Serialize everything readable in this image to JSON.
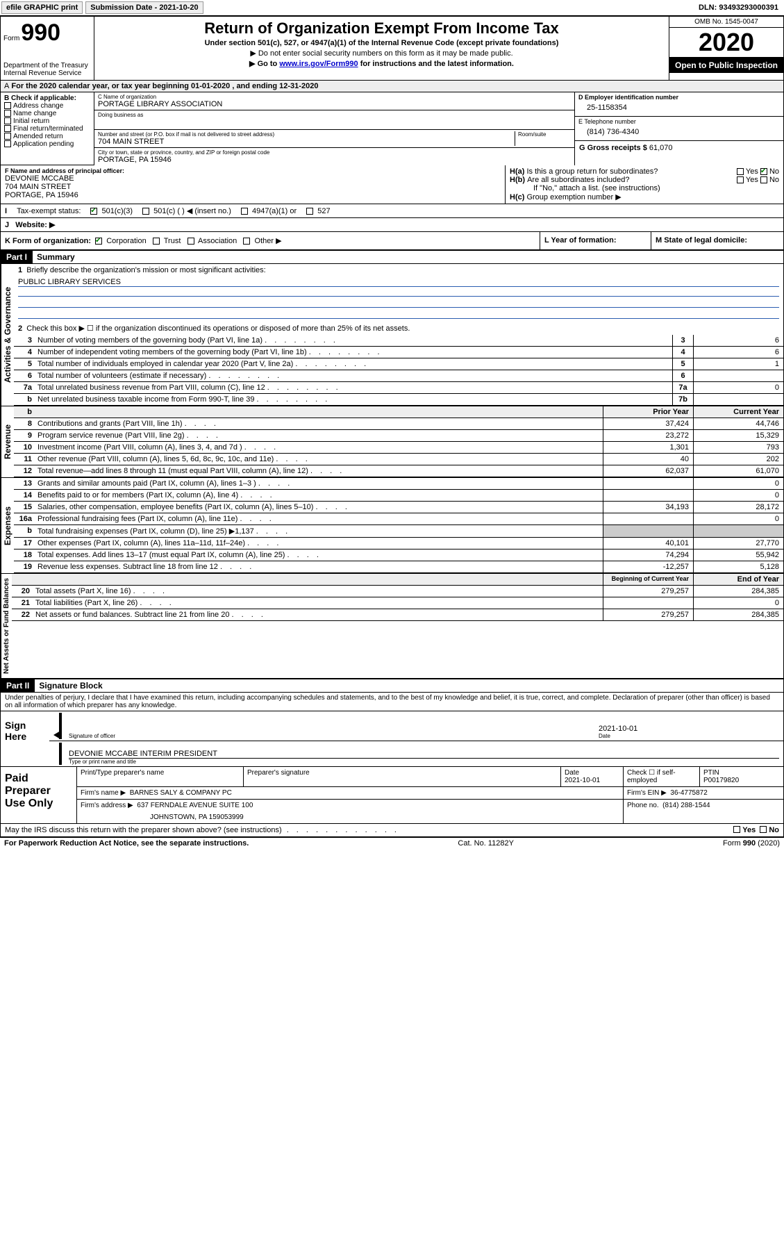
{
  "topbar": {
    "efile": "efile GRAPHIC print",
    "submission_label": "Submission Date - 2021-10-20",
    "dln": "DLN: 93493293000391"
  },
  "header": {
    "form_label": "Form",
    "form_number": "990",
    "dept": "Department of the Treasury",
    "irs": "Internal Revenue Service",
    "title": "Return of Organization Exempt From Income Tax",
    "subtitle": "Under section 501(c), 527, or 4947(a)(1) of the Internal Revenue Code (except private foundations)",
    "line1": "▶ Do not enter social security numbers on this form as it may be made public.",
    "line2_pre": "▶ Go to ",
    "line2_link": "www.irs.gov/Form990",
    "line2_post": " for instructions and the latest information.",
    "omb": "OMB No. 1545-0047",
    "year": "2020",
    "open": "Open to Public Inspection"
  },
  "period": {
    "text": "For the 2020 calendar year, or tax year beginning 01-01-2020    , and ending 12-31-2020"
  },
  "boxB": {
    "heading": "B Check if applicable:",
    "addr": "Address change",
    "name": "Name change",
    "initial": "Initial return",
    "final": "Final return/terminated",
    "amended": "Amended return",
    "app": "Application pending"
  },
  "boxC": {
    "name_label": "C Name of organization",
    "name": "PORTAGE LIBRARY ASSOCIATION",
    "dba_label": "Doing business as",
    "street_label": "Number and street (or P.O. box if mail is not delivered to street address)",
    "room_label": "Room/suite",
    "street": "704 MAIN STREET",
    "city_label": "City or town, state or province, country, and ZIP or foreign postal code",
    "city": "PORTAGE, PA  15946"
  },
  "boxD": {
    "label": "D Employer identification number",
    "value": "25-1158354"
  },
  "boxE": {
    "label": "E Telephone number",
    "value": "(814) 736-4340"
  },
  "boxG": {
    "label": "G Gross receipts $",
    "value": "61,070"
  },
  "boxF": {
    "label": "F  Name and address of principal officer:",
    "name": "DEVONIE MCCABE",
    "street": "704 MAIN STREET",
    "city": "PORTAGE, PA  15946"
  },
  "boxH": {
    "a": "Is this a group return for subordinates?",
    "a_yes": "Yes",
    "a_no": "No",
    "b": "Are all subordinates included?",
    "b_yes": "Yes",
    "b_no": "No",
    "b_note": "If \"No,\" attach a list. (see instructions)",
    "c": "Group exemption number ▶"
  },
  "taxExempt": {
    "label": "Tax-exempt status:",
    "c3": "501(c)(3)",
    "c": "501(c) (   ) ◀ (insert no.)",
    "a1": "4947(a)(1) or",
    "527": "527"
  },
  "website": {
    "label": "Website: ▶"
  },
  "korg": {
    "label": "K Form of organization:",
    "corp": "Corporation",
    "trust": "Trust",
    "assoc": "Association",
    "other": "Other ▶",
    "l": "L Year of formation:",
    "m": "M State of legal domicile:"
  },
  "partI": {
    "tab": "Part I",
    "title": "Summary",
    "q1": "Briefly describe the organization's mission or most significant activities:",
    "mission": "PUBLIC LIBRARY SERVICES",
    "q2": "Check this box ▶ ☐  if the organization discontinued its operations or disposed of more than 25% of its net assets.",
    "lines_gov": [
      {
        "n": "3",
        "d": "Number of voting members of the governing body (Part VI, line 1a)",
        "box": "3",
        "v": "6"
      },
      {
        "n": "4",
        "d": "Number of independent voting members of the governing body (Part VI, line 1b)",
        "box": "4",
        "v": "6"
      },
      {
        "n": "5",
        "d": "Total number of individuals employed in calendar year 2020 (Part V, line 2a)",
        "box": "5",
        "v": "1"
      },
      {
        "n": "6",
        "d": "Total number of volunteers (estimate if necessary)",
        "box": "6",
        "v": ""
      },
      {
        "n": "7a",
        "d": "Total unrelated business revenue from Part VIII, column (C), line 12",
        "box": "7a",
        "v": "0"
      },
      {
        "n": "b",
        "d": "Net unrelated business taxable income from Form 990-T, line 39",
        "box": "7b",
        "v": ""
      }
    ],
    "col_prior": "Prior Year",
    "col_current": "Current Year",
    "lines_rev": [
      {
        "n": "8",
        "d": "Contributions and grants (Part VIII, line 1h)",
        "p": "37,424",
        "c": "44,746"
      },
      {
        "n": "9",
        "d": "Program service revenue (Part VIII, line 2g)",
        "p": "23,272",
        "c": "15,329"
      },
      {
        "n": "10",
        "d": "Investment income (Part VIII, column (A), lines 3, 4, and 7d )",
        "p": "1,301",
        "c": "793"
      },
      {
        "n": "11",
        "d": "Other revenue (Part VIII, column (A), lines 5, 6d, 8c, 9c, 10c, and 11e)",
        "p": "40",
        "c": "202"
      },
      {
        "n": "12",
        "d": "Total revenue—add lines 8 through 11 (must equal Part VIII, column (A), line 12)",
        "p": "62,037",
        "c": "61,070"
      }
    ],
    "lines_exp": [
      {
        "n": "13",
        "d": "Grants and similar amounts paid (Part IX, column (A), lines 1–3 )",
        "p": "",
        "c": "0"
      },
      {
        "n": "14",
        "d": "Benefits paid to or for members (Part IX, column (A), line 4)",
        "p": "",
        "c": "0"
      },
      {
        "n": "15",
        "d": "Salaries, other compensation, employee benefits (Part IX, column (A), lines 5–10)",
        "p": "34,193",
        "c": "28,172"
      },
      {
        "n": "16a",
        "d": "Professional fundraising fees (Part IX, column (A), line 11e)",
        "p": "",
        "c": "0"
      },
      {
        "n": "b",
        "d": "Total fundraising expenses (Part IX, column (D), line 25) ▶1,137",
        "p": "GRAY",
        "c": "GRAY"
      },
      {
        "n": "17",
        "d": "Other expenses (Part IX, column (A), lines 11a–11d, 11f–24e)",
        "p": "40,101",
        "c": "27,770"
      },
      {
        "n": "18",
        "d": "Total expenses. Add lines 13–17 (must equal Part IX, column (A), line 25)",
        "p": "74,294",
        "c": "55,942"
      },
      {
        "n": "19",
        "d": "Revenue less expenses. Subtract line 18 from line 12",
        "p": "-12,257",
        "c": "5,128"
      }
    ],
    "col_begin": "Beginning of Current Year",
    "col_end": "End of Year",
    "lines_net": [
      {
        "n": "20",
        "d": "Total assets (Part X, line 16)",
        "p": "279,257",
        "c": "284,385"
      },
      {
        "n": "21",
        "d": "Total liabilities (Part X, line 26)",
        "p": "",
        "c": "0"
      },
      {
        "n": "22",
        "d": "Net assets or fund balances. Subtract line 21 from line 20",
        "p": "279,257",
        "c": "284,385"
      }
    ],
    "vlabels": {
      "gov": "Activities & Governance",
      "rev": "Revenue",
      "exp": "Expenses",
      "net": "Net Assets or Fund Balances"
    }
  },
  "partII": {
    "tab": "Part II",
    "title": "Signature Block",
    "declare": "Under penalties of perjury, I declare that I have examined this return, including accompanying schedules and statements, and to the best of my knowledge and belief, it is true, correct, and complete. Declaration of preparer (other than officer) is based on all information of which preparer has any knowledge."
  },
  "sign": {
    "here": "Sign Here",
    "sig_label": "Signature of officer",
    "date_label": "Date",
    "date": "2021-10-01",
    "name": "DEVONIE MCCABE  INTERIM PRESIDENT",
    "name_label": "Type or print name and title"
  },
  "preparer": {
    "left": "Paid Preparer Use Only",
    "pt_name_label": "Print/Type preparer's name",
    "sig_label": "Preparer's signature",
    "date_label": "Date",
    "date": "2021-10-01",
    "self_label": "Check ☐ if self-employed",
    "ptin_label": "PTIN",
    "ptin": "P00179820",
    "firm_name_label": "Firm's name    ▶",
    "firm_name": "BARNES SALY & COMPANY PC",
    "firm_ein_label": "Firm's EIN ▶",
    "firm_ein": "36-4775872",
    "firm_addr_label": "Firm's address ▶",
    "firm_addr1": "637 FERNDALE AVENUE SUITE 100",
    "firm_addr2": "JOHNSTOWN, PA  159053999",
    "phone_label": "Phone no.",
    "phone": "(814) 288-1544"
  },
  "discuss": {
    "q": "May the IRS discuss this return with the preparer shown above? (see instructions)",
    "yes": "Yes",
    "no": "No"
  },
  "footer": {
    "left": "For Paperwork Reduction Act Notice, see the separate instructions.",
    "mid": "Cat. No. 11282Y",
    "right_pre": "Form ",
    "right_b": "990",
    "right_post": " (2020)"
  },
  "I": "I",
  "J": "J",
  "Ha": "H(a)",
  "Hb": "H(b)",
  "Hc": "H(c)",
  "A": "A"
}
